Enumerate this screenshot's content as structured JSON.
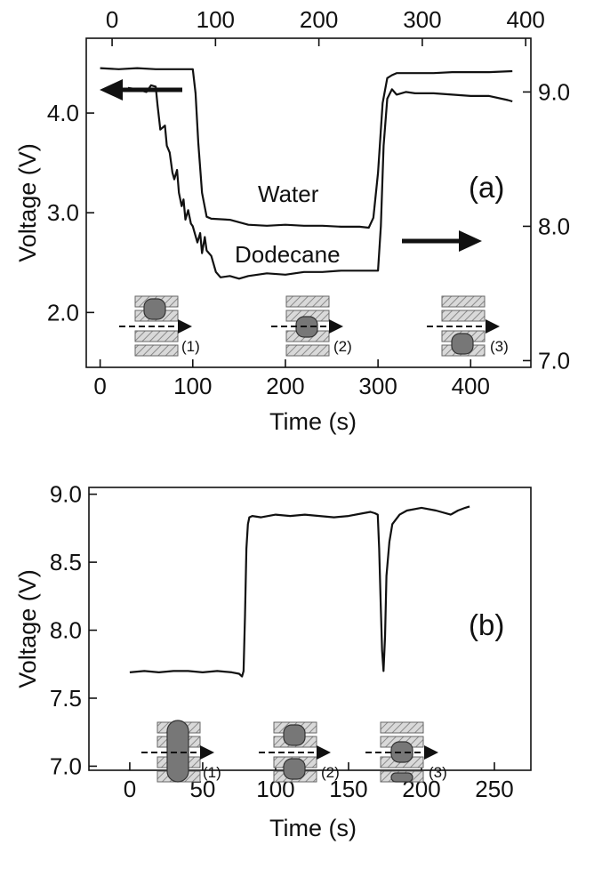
{
  "chart_data": [
    {
      "type": "line",
      "panel_label": "(a)",
      "xlabel": "Time (s)",
      "ylabel": "Voltage (V)",
      "xlim": [
        -15,
        465
      ],
      "ylim": [
        1.45,
        4.75
      ],
      "x_ticks": [
        0,
        100,
        200,
        300,
        400
      ],
      "y_ticks": [
        "2.0",
        "3.0",
        "4.0"
      ],
      "top_xlim": [
        -25,
        405
      ],
      "top_x_ticks": [
        0,
        100,
        200,
        300,
        400
      ],
      "right_ylim": [
        6.95,
        9.4
      ],
      "right_y_ticks": [
        "7.0",
        "8.0",
        "9.0"
      ],
      "annotations": [
        "Water",
        "Dodecane"
      ],
      "diagram_labels": [
        "(1)",
        "(2)",
        "(3)"
      ],
      "series": [
        {
          "name": "Water",
          "axis": "left",
          "x": [
            0,
            20,
            40,
            60,
            80,
            100,
            103,
            106,
            110,
            115,
            120,
            140,
            160,
            180,
            200,
            220,
            240,
            260,
            280,
            290,
            295,
            300,
            305,
            310,
            315,
            320,
            340,
            360,
            380,
            400,
            420,
            445
          ],
          "y": [
            4.45,
            4.44,
            4.45,
            4.44,
            4.44,
            4.44,
            4.2,
            3.7,
            3.2,
            2.96,
            2.94,
            2.93,
            2.88,
            2.87,
            2.88,
            2.87,
            2.87,
            2.86,
            2.86,
            2.85,
            2.95,
            3.4,
            4.1,
            4.35,
            4.38,
            4.4,
            4.4,
            4.4,
            4.41,
            4.41,
            4.41,
            4.42
          ]
        },
        {
          "name": "Dodecane",
          "axis": "right",
          "x": [
            30,
            40,
            50,
            55,
            60,
            62,
            65,
            70,
            72,
            75,
            78,
            80,
            83,
            85,
            88,
            90,
            92,
            95,
            98,
            100,
            105,
            108,
            110,
            113,
            115,
            120,
            125,
            130,
            140,
            150,
            160,
            180,
            200,
            220,
            240,
            260,
            280,
            300,
            303,
            306,
            310,
            315,
            320,
            330,
            340,
            360,
            380,
            400,
            420,
            440,
            445
          ],
          "y": [
            9.03,
            9.02,
            9.0,
            9.05,
            9.04,
            8.9,
            8.72,
            8.75,
            8.6,
            8.55,
            8.4,
            8.35,
            8.42,
            8.25,
            8.15,
            8.2,
            8.05,
            8.12,
            8.02,
            8.0,
            7.88,
            7.95,
            7.8,
            7.92,
            7.82,
            7.78,
            7.66,
            7.62,
            7.63,
            7.61,
            7.63,
            7.65,
            7.64,
            7.66,
            7.66,
            7.67,
            7.67,
            7.67,
            8.0,
            8.6,
            8.95,
            9.02,
            8.98,
            9.0,
            8.99,
            8.99,
            8.98,
            8.97,
            8.97,
            8.94,
            8.93
          ]
        }
      ]
    },
    {
      "type": "line",
      "panel_label": "(b)",
      "xlabel": "Time (s)",
      "ylabel": "Voltage (V)",
      "xlim": [
        -28,
        275
      ],
      "ylim": [
        6.97,
        9.05
      ],
      "x_ticks": [
        0,
        50,
        100,
        150,
        200,
        250
      ],
      "y_ticks": [
        "7.0",
        "7.5",
        "8.0",
        "8.5",
        "9.0"
      ],
      "diagram_labels": [
        "(1)",
        "(2)",
        "(3)"
      ],
      "series": [
        {
          "x": [
            0,
            10,
            20,
            30,
            40,
            50,
            60,
            70,
            75,
            77,
            78,
            79,
            80,
            81,
            82,
            84,
            90,
            100,
            110,
            120,
            130,
            140,
            150,
            160,
            165,
            168,
            170,
            171,
            172,
            173,
            174,
            175,
            176,
            178,
            180,
            185,
            190,
            200,
            210,
            220,
            225,
            230,
            233
          ],
          "y": [
            7.69,
            7.7,
            7.69,
            7.7,
            7.7,
            7.69,
            7.7,
            7.69,
            7.68,
            7.66,
            7.7,
            8.1,
            8.6,
            8.78,
            8.83,
            8.84,
            8.83,
            8.85,
            8.84,
            8.85,
            8.84,
            8.83,
            8.84,
            8.86,
            8.87,
            8.86,
            8.85,
            8.6,
            8.2,
            7.85,
            7.7,
            7.95,
            8.4,
            8.65,
            8.78,
            8.85,
            8.88,
            8.9,
            8.88,
            8.85,
            8.88,
            8.9,
            8.91
          ]
        }
      ]
    }
  ]
}
